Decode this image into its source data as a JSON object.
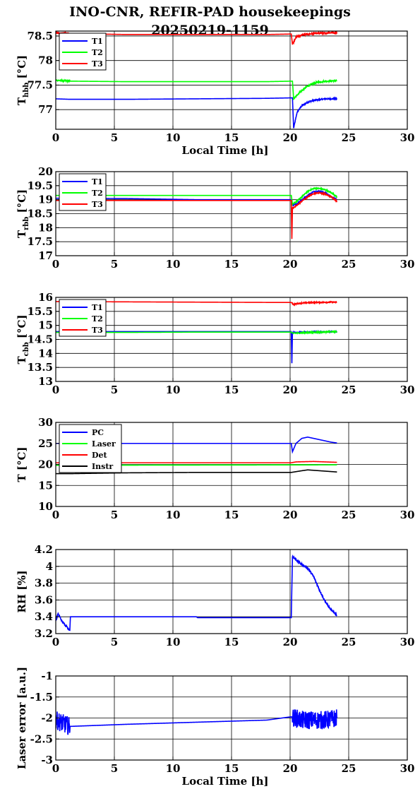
{
  "title": {
    "line1": "INO-CNR, REFIR-PAD housekeepings",
    "line2": "20250219-1159"
  },
  "chart_data": [
    {
      "type": "line",
      "ylabel_main": "T",
      "ylabel_sub": "hbb",
      "ylabel_unit": " [°C]",
      "xlabel": "Local Time [h]",
      "xlim": [
        0,
        30
      ],
      "ylim": [
        76.6,
        78.6
      ],
      "xticks": [
        0,
        5,
        10,
        15,
        20,
        25,
        30
      ],
      "yticks": [
        77,
        77.5,
        78,
        78.5
      ],
      "ytick_labels": [
        "77",
        "77.5",
        "78",
        "78.5"
      ],
      "grid": true,
      "legend_position": "top-left",
      "series": [
        {
          "name": "T1",
          "color": "#0000ff",
          "points": [
            [
              0,
              77.22
            ],
            [
              1.2,
              77.21
            ],
            [
              6,
              77.21
            ],
            [
              12,
              77.22
            ],
            [
              18,
              77.23
            ],
            [
              20.2,
              77.24
            ],
            [
              20.3,
              76.62
            ],
            [
              20.6,
              76.95
            ],
            [
              21.0,
              77.08
            ],
            [
              21.5,
              77.15
            ],
            [
              22.0,
              77.19
            ],
            [
              23.0,
              77.22
            ],
            [
              24.0,
              77.22
            ]
          ],
          "noise": 0.012,
          "noise_ranges": [
            [
              20.3,
              24
            ]
          ]
        },
        {
          "name": "T2",
          "color": "#00ff00",
          "points": [
            [
              0,
              77.6
            ],
            [
              1.2,
              77.58
            ],
            [
              6,
              77.57
            ],
            [
              12,
              77.57
            ],
            [
              18,
              77.57
            ],
            [
              20.2,
              77.58
            ],
            [
              20.3,
              77.22
            ],
            [
              20.8,
              77.35
            ],
            [
              21.5,
              77.48
            ],
            [
              22.2,
              77.55
            ],
            [
              23.0,
              77.58
            ],
            [
              24.0,
              77.59
            ]
          ],
          "noise": 0.015,
          "noise_ranges": [
            [
              0,
              1.2
            ],
            [
              20.3,
              24
            ]
          ]
        },
        {
          "name": "T3",
          "color": "#ff0000",
          "points": [
            [
              0,
              78.56
            ],
            [
              1.2,
              78.55
            ],
            [
              6,
              78.53
            ],
            [
              12,
              78.53
            ],
            [
              18,
              78.53
            ],
            [
              20.1,
              78.54
            ],
            [
              20.2,
              78.33
            ],
            [
              20.5,
              78.48
            ],
            [
              21.0,
              78.52
            ],
            [
              22.0,
              78.55
            ],
            [
              24.0,
              78.57
            ]
          ],
          "noise": 0.018,
          "noise_ranges": [
            [
              0,
              1.2
            ],
            [
              20.2,
              24
            ]
          ]
        }
      ]
    },
    {
      "type": "line",
      "ylabel_main": "T",
      "ylabel_sub": "rbb",
      "ylabel_unit": " [°C]",
      "xlabel": "",
      "xlim": [
        0,
        30
      ],
      "ylim": [
        17,
        20
      ],
      "xticks": [
        0,
        5,
        10,
        15,
        20,
        25,
        30
      ],
      "yticks": [
        17,
        17.5,
        18,
        18.5,
        19,
        19.5,
        20
      ],
      "ytick_labels": [
        "17",
        "17.5",
        "18",
        "18.5",
        "19",
        "19.5",
        "20"
      ],
      "grid": true,
      "legend_position": "top-left",
      "series": [
        {
          "name": "T1",
          "color": "#0000ff",
          "points": [
            [
              0,
              19.05
            ],
            [
              6,
              19.04
            ],
            [
              12,
              19.0
            ],
            [
              18,
              19.0
            ],
            [
              20.1,
              19.0
            ],
            [
              20.2,
              18.8
            ],
            [
              20.6,
              18.85
            ],
            [
              21.0,
              19.0
            ],
            [
              21.5,
              19.15
            ],
            [
              22.0,
              19.28
            ],
            [
              22.5,
              19.3
            ],
            [
              23.0,
              19.25
            ],
            [
              23.5,
              19.1
            ],
            [
              24.0,
              19.0
            ]
          ],
          "noise": 0.02,
          "noise_ranges": [
            [
              20.2,
              24
            ]
          ]
        },
        {
          "name": "T2",
          "color": "#00ff00",
          "points": [
            [
              0,
              19.15
            ],
            [
              6,
              19.15
            ],
            [
              12,
              19.15
            ],
            [
              18,
              19.15
            ],
            [
              20.1,
              19.15
            ],
            [
              20.2,
              18.85
            ],
            [
              20.6,
              18.95
            ],
            [
              21.0,
              19.1
            ],
            [
              21.5,
              19.3
            ],
            [
              22.0,
              19.4
            ],
            [
              22.5,
              19.4
            ],
            [
              23.0,
              19.35
            ],
            [
              23.5,
              19.25
            ],
            [
              24.0,
              19.1
            ]
          ],
          "noise": 0.02,
          "noise_ranges": [
            [
              20.2,
              24
            ]
          ]
        },
        {
          "name": "T3",
          "color": "#ff0000",
          "points": [
            [
              0,
              18.97
            ],
            [
              6,
              18.97
            ],
            [
              12,
              18.97
            ],
            [
              18,
              18.97
            ],
            [
              20.1,
              18.97
            ],
            [
              20.15,
              17.6
            ],
            [
              20.2,
              18.7
            ],
            [
              20.6,
              18.8
            ],
            [
              21.0,
              18.95
            ],
            [
              21.5,
              19.1
            ],
            [
              22.0,
              19.22
            ],
            [
              22.5,
              19.25
            ],
            [
              23.0,
              19.2
            ],
            [
              23.5,
              19.1
            ],
            [
              24.0,
              18.95
            ]
          ],
          "noise": 0.02,
          "noise_ranges": [
            [
              20.2,
              24
            ]
          ]
        }
      ]
    },
    {
      "type": "line",
      "ylabel_main": "T",
      "ylabel_sub": "cbb",
      "ylabel_unit": " [°C]",
      "xlabel": "",
      "xlim": [
        0,
        30
      ],
      "ylim": [
        13,
        16
      ],
      "xticks": [
        0,
        5,
        10,
        15,
        20,
        25,
        30
      ],
      "yticks": [
        13,
        13.5,
        14,
        14.5,
        15,
        15.5,
        16
      ],
      "ytick_labels": [
        "13",
        "13.5",
        "14",
        "14.5",
        "15",
        "15.5",
        "16"
      ],
      "grid": true,
      "legend_position": "top-left",
      "series": [
        {
          "name": "T1",
          "color": "#0000ff",
          "points": [
            [
              0,
              14.78
            ],
            [
              6,
              14.78
            ],
            [
              12,
              14.78
            ],
            [
              18,
              14.78
            ],
            [
              20.1,
              14.78
            ],
            [
              20.15,
              13.65
            ],
            [
              20.2,
              14.75
            ],
            [
              24.0,
              14.78
            ]
          ],
          "noise": 0.015,
          "noise_ranges": [
            [
              20.2,
              24
            ]
          ]
        },
        {
          "name": "T2",
          "color": "#00ff00",
          "points": [
            [
              0,
              14.75
            ],
            [
              6,
              14.75
            ],
            [
              12,
              14.76
            ],
            [
              18,
              14.76
            ],
            [
              20.1,
              14.76
            ],
            [
              20.2,
              14.72
            ],
            [
              22.0,
              14.75
            ],
            [
              24.0,
              14.78
            ]
          ],
          "noise": 0.02,
          "noise_ranges": [
            [
              20.2,
              24
            ]
          ]
        },
        {
          "name": "T3",
          "color": "#ff0000",
          "points": [
            [
              0,
              15.85
            ],
            [
              6,
              15.84
            ],
            [
              12,
              15.83
            ],
            [
              18,
              15.82
            ],
            [
              20.1,
              15.82
            ],
            [
              20.3,
              15.75
            ],
            [
              21.0,
              15.8
            ],
            [
              22.0,
              15.82
            ],
            [
              24.0,
              15.83
            ]
          ],
          "noise": 0.018,
          "noise_ranges": [
            [
              20.2,
              24
            ]
          ]
        }
      ]
    },
    {
      "type": "line",
      "ylabel_main": "T [°C]",
      "ylabel_sub": "",
      "ylabel_unit": "",
      "xlabel": "",
      "xlim": [
        0,
        30
      ],
      "ylim": [
        10,
        30
      ],
      "xticks": [
        0,
        5,
        10,
        15,
        20,
        25,
        30
      ],
      "yticks": [
        10,
        15,
        20,
        25,
        30
      ],
      "ytick_labels": [
        "10",
        "15",
        "20",
        "25",
        "30"
      ],
      "grid": true,
      "legend_position": "top-left",
      "series": [
        {
          "name": "PC",
          "color": "#0000ff",
          "points": [
            [
              0,
              25.0
            ],
            [
              20.1,
              25.0
            ],
            [
              20.2,
              23.0
            ],
            [
              20.5,
              25.0
            ],
            [
              21.0,
              26.2
            ],
            [
              21.5,
              26.5
            ],
            [
              22.0,
              26.2
            ],
            [
              22.5,
              25.9
            ],
            [
              23.0,
              25.6
            ],
            [
              23.5,
              25.3
            ],
            [
              24.0,
              25.1
            ]
          ],
          "noise": 0.0,
          "noise_ranges": []
        },
        {
          "name": "Laser",
          "color": "#00ff00",
          "points": [
            [
              0,
              19.8
            ],
            [
              24.0,
              19.9
            ]
          ],
          "noise": 0.0,
          "noise_ranges": []
        },
        {
          "name": "Det",
          "color": "#ff0000",
          "points": [
            [
              0,
              20.4
            ],
            [
              20.1,
              20.4
            ],
            [
              20.5,
              20.6
            ],
            [
              22.0,
              20.7
            ],
            [
              24.0,
              20.5
            ]
          ],
          "noise": 0.0,
          "noise_ranges": []
        },
        {
          "name": "Instr",
          "color": "#000000",
          "points": [
            [
              0,
              17.8
            ],
            [
              1.2,
              17.8
            ],
            [
              6,
              18.0
            ],
            [
              12,
              18.1
            ],
            [
              18,
              18.1
            ],
            [
              20.1,
              18.1
            ],
            [
              21.0,
              18.5
            ],
            [
              21.5,
              18.7
            ],
            [
              22.5,
              18.5
            ],
            [
              24.0,
              18.2
            ]
          ],
          "noise": 0.0,
          "noise_ranges": []
        }
      ]
    },
    {
      "type": "line",
      "ylabel_main": "RH [%]",
      "ylabel_sub": "",
      "ylabel_unit": "",
      "xlabel": "",
      "xlim": [
        0,
        30
      ],
      "ylim": [
        3.2,
        4.2
      ],
      "xticks": [
        0,
        5,
        10,
        15,
        20,
        25,
        30
      ],
      "yticks": [
        3.2,
        3.4,
        3.6,
        3.8,
        4,
        4.2
      ],
      "ytick_labels": [
        "3.2",
        "3.4",
        "3.6",
        "3.8",
        "4",
        "4.2"
      ],
      "grid": true,
      "legend_position": "",
      "series": [
        {
          "name": "",
          "color": "#0000ff",
          "points": [
            [
              0,
              3.35
            ],
            [
              0.2,
              3.44
            ],
            [
              0.5,
              3.35
            ],
            [
              0.8,
              3.3
            ],
            [
              1.2,
              3.24
            ],
            [
              1.25,
              3.4
            ],
            [
              6,
              3.4
            ],
            [
              12,
              3.4
            ],
            [
              12.1,
              3.39
            ],
            [
              18,
              3.39
            ],
            [
              20.1,
              3.39
            ],
            [
              20.2,
              4.12
            ],
            [
              20.5,
              4.08
            ],
            [
              21.0,
              4.02
            ],
            [
              21.5,
              3.98
            ],
            [
              22.0,
              3.88
            ],
            [
              22.5,
              3.72
            ],
            [
              23.0,
              3.58
            ],
            [
              23.5,
              3.48
            ],
            [
              24.0,
              3.42
            ]
          ],
          "noise": 0.012,
          "noise_ranges": [
            [
              0,
              1.2
            ],
            [
              20.2,
              24
            ]
          ]
        }
      ]
    },
    {
      "type": "line",
      "ylabel_main": "Laser error [a.u.]",
      "ylabel_sub": "",
      "ylabel_unit": "",
      "xlabel": "Local Time [h]",
      "xlim": [
        0,
        30
      ],
      "ylim": [
        -3,
        -1
      ],
      "xticks": [
        0,
        5,
        10,
        15,
        20,
        25,
        30
      ],
      "yticks": [
        -3,
        -2.5,
        -2,
        -1.5,
        -1
      ],
      "ytick_labels": [
        "-3",
        "-2.5",
        "-2",
        "-1.5",
        "-1"
      ],
      "grid": true,
      "legend_position": "",
      "series": [
        {
          "name": "",
          "color": "#0000ff",
          "points": [
            [
              0,
              -2.05
            ],
            [
              1.2,
              -2.2
            ],
            [
              6,
              -2.15
            ],
            [
              12,
              -2.1
            ],
            [
              18,
              -2.05
            ],
            [
              20.1,
              -1.97
            ],
            [
              21.0,
              -2.05
            ],
            [
              22.0,
              -2.05
            ],
            [
              23.0,
              -2.05
            ],
            [
              24.0,
              -2.0
            ]
          ],
          "noise": 0.22,
          "noise_ranges": [
            [
              0,
              1.2
            ],
            [
              20.2,
              24
            ]
          ]
        }
      ]
    }
  ]
}
